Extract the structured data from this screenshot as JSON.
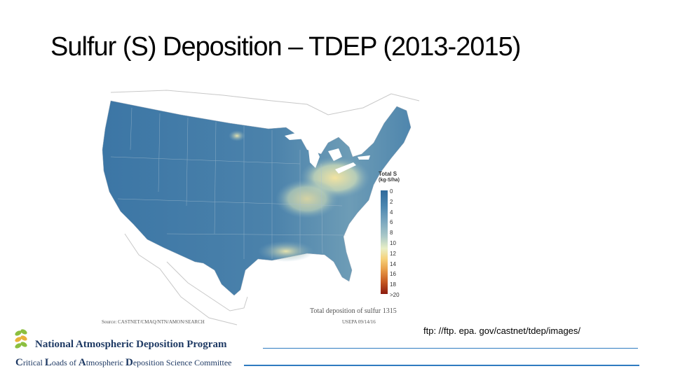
{
  "slide": {
    "title": "Sulfur (S) Deposition – TDEP (2013-2015)"
  },
  "map": {
    "legend_title": "Total S",
    "legend_unit": "(kg-S/ha)",
    "legend_ticks": [
      "0",
      "2",
      "4",
      "6",
      "8",
      "10",
      "12",
      "14",
      "16",
      "18",
      ">20"
    ],
    "caption_total": "Total deposition of sulfur 1315",
    "caption_source": "Source: CASTNET/CMAQ/NTN/AMON/SEARCH",
    "caption_agency": "USEPA 09/14/16",
    "colors": {
      "low": "#3a78a8",
      "mid": "#e8efc6",
      "high": "#8b1b0f"
    }
  },
  "footer": {
    "url": "ftp: //ftp. epa. gov/castnet/tdep/images/",
    "org_name": "National Atmospheric Deposition Program",
    "committee": {
      "c": "C",
      "ritical": "ritical ",
      "l": "L",
      "oads": "oads of ",
      "a": "A",
      "tmospheric": "tmospheric ",
      "d": "D",
      "eposition": "eposition Science Committee"
    },
    "colors": {
      "brand": "#1f3a64",
      "rule": "#2f7bc0",
      "logo_green": "#8cbf3f",
      "logo_yellow": "#e8b23a"
    }
  }
}
